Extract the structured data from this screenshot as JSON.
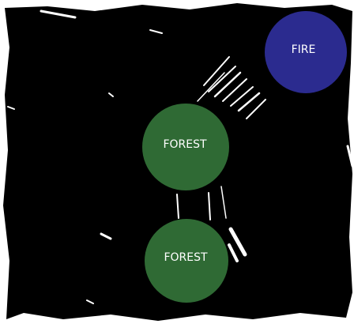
{
  "board": {
    "background_color": "#000000",
    "edge_color": "#ffffff"
  },
  "nodes": [
    {
      "id": "fire",
      "label": "FIRE",
      "color": "#2b2b8f"
    },
    {
      "id": "forest-upper",
      "label": "FOREST",
      "color": "#2f6a34"
    },
    {
      "id": "forest-lower",
      "label": "FOREST",
      "color": "#2f6a34"
    }
  ],
  "connections": [
    {
      "from": "fire",
      "to": "forest-upper"
    },
    {
      "from": "forest-upper",
      "to": "forest-lower"
    }
  ]
}
